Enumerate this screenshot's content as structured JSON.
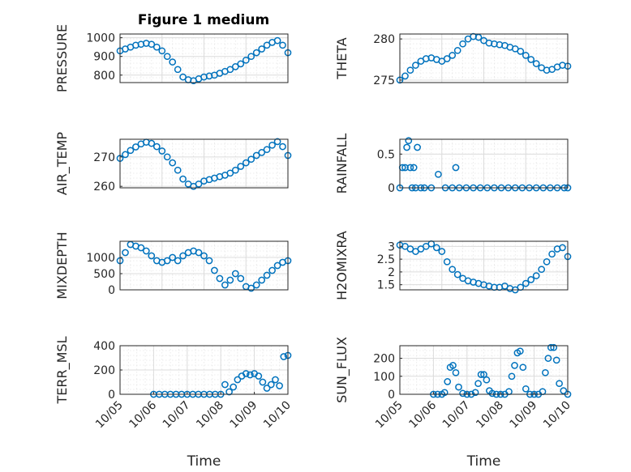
{
  "figure_title": "Figure 1 medium",
  "chart_data": [
    {
      "type": "scatter",
      "ylabel": "PRESSURE",
      "xlim": [
        "10/06",
        "10/10"
      ],
      "ylim": [
        760,
        1020
      ],
      "yticks": [
        800,
        900,
        1000
      ],
      "series": [
        {
          "x": [
            "10/06 00:00",
            "10/06 03:00",
            "10/06 06:00",
            "10/06 09:00",
            "10/06 12:00",
            "10/06 15:00",
            "10/06 18:00",
            "10/06 21:00",
            "10/07 00:00",
            "10/07 03:00",
            "10/07 06:00",
            "10/07 09:00",
            "10/07 12:00",
            "10/07 15:00",
            "10/07 18:00",
            "10/07 21:00",
            "10/08 00:00",
            "10/08 03:00",
            "10/08 06:00",
            "10/08 09:00",
            "10/08 12:00",
            "10/08 15:00",
            "10/08 18:00",
            "10/08 21:00",
            "10/09 00:00",
            "10/09 03:00",
            "10/09 06:00",
            "10/09 09:00",
            "10/09 12:00",
            "10/09 15:00",
            "10/09 18:00",
            "10/09 21:00",
            "10/10 00:00"
          ],
          "y": [
            930,
            940,
            950,
            960,
            965,
            970,
            965,
            950,
            930,
            900,
            870,
            830,
            790,
            775,
            770,
            780,
            790,
            795,
            800,
            810,
            820,
            830,
            845,
            860,
            880,
            900,
            920,
            940,
            960,
            975,
            985,
            960,
            920
          ]
        }
      ]
    },
    {
      "type": "scatter",
      "ylabel": "THETA",
      "xlim": [
        "10/06",
        "10/10"
      ],
      "ylim": [
        274.7,
        280.6
      ],
      "yticks": [
        275,
        280
      ],
      "series": [
        {
          "x": [
            "10/06 00:00",
            "10/06 03:00",
            "10/06 06:00",
            "10/06 09:00",
            "10/06 12:00",
            "10/06 15:00",
            "10/06 18:00",
            "10/06 21:00",
            "10/07 00:00",
            "10/07 03:00",
            "10/07 06:00",
            "10/07 09:00",
            "10/07 12:00",
            "10/07 15:00",
            "10/07 18:00",
            "10/07 21:00",
            "10/08 00:00",
            "10/08 03:00",
            "10/08 06:00",
            "10/08 09:00",
            "10/08 12:00",
            "10/08 15:00",
            "10/08 18:00",
            "10/08 21:00",
            "10/09 00:00",
            "10/09 03:00",
            "10/09 06:00",
            "10/09 09:00",
            "10/09 12:00",
            "10/09 15:00",
            "10/09 18:00",
            "10/09 21:00",
            "10/10 00:00"
          ],
          "y": [
            275.0,
            275.5,
            276.2,
            276.8,
            277.3,
            277.6,
            277.7,
            277.5,
            277.3,
            277.6,
            278.0,
            278.6,
            279.4,
            280.0,
            280.3,
            280.2,
            279.8,
            279.5,
            279.4,
            279.3,
            279.2,
            279.0,
            278.8,
            278.5,
            278.0,
            277.5,
            277.0,
            276.5,
            276.2,
            276.3,
            276.6,
            276.8,
            276.7
          ]
        }
      ]
    },
    {
      "type": "scatter",
      "ylabel": "AIR_TEMP",
      "xlim": [
        "10/06",
        "10/10"
      ],
      "ylim": [
        259.5,
        276
      ],
      "yticks": [
        260,
        270
      ],
      "series": [
        {
          "x": [
            "10/06 00:00",
            "10/06 03:00",
            "10/06 06:00",
            "10/06 09:00",
            "10/06 12:00",
            "10/06 15:00",
            "10/06 18:00",
            "10/06 21:00",
            "10/07 00:00",
            "10/07 03:00",
            "10/07 06:00",
            "10/07 09:00",
            "10/07 12:00",
            "10/07 15:00",
            "10/07 18:00",
            "10/07 21:00",
            "10/08 00:00",
            "10/08 03:00",
            "10/08 06:00",
            "10/08 09:00",
            "10/08 12:00",
            "10/08 15:00",
            "10/08 18:00",
            "10/08 21:00",
            "10/09 00:00",
            "10/09 03:00",
            "10/09 06:00",
            "10/09 09:00",
            "10/09 12:00",
            "10/09 15:00",
            "10/09 18:00",
            "10/09 21:00",
            "10/10 00:00"
          ],
          "y": [
            269.5,
            270.8,
            272.2,
            273.4,
            274.4,
            275.0,
            274.6,
            273.5,
            272.0,
            270.0,
            268.0,
            265.5,
            262.5,
            260.8,
            260.0,
            260.8,
            261.8,
            262.3,
            262.8,
            263.3,
            263.8,
            264.5,
            265.5,
            266.8,
            268.0,
            269.2,
            270.5,
            271.5,
            272.5,
            274.0,
            275.2,
            273.5,
            270.5
          ]
        }
      ]
    },
    {
      "type": "scatter",
      "ylabel": "RAINFALL",
      "xlim": [
        "10/06",
        "10/10"
      ],
      "ylim": [
        0,
        0.72
      ],
      "yticks": [
        0,
        0.5
      ],
      "series": [
        {
          "x": [
            "10/06 00:00",
            "10/06 01:30",
            "10/06 03:00",
            "10/06 04:00",
            "10/06 05:00",
            "10/06 06:00",
            "10/06 07:00",
            "10/06 08:00",
            "10/06 09:00",
            "10/06 10:00",
            "10/06 12:00",
            "10/06 14:00",
            "10/06 18:00",
            "10/06 22:00",
            "10/07 02:00",
            "10/07 06:00",
            "10/07 08:00",
            "10/07 10:00",
            "10/07 14:00",
            "10/07 18:00",
            "10/07 22:00",
            "10/08 02:00",
            "10/08 06:00",
            "10/08 10:00",
            "10/08 14:00",
            "10/08 18:00",
            "10/08 22:00",
            "10/09 02:00",
            "10/09 06:00",
            "10/09 10:00",
            "10/09 14:00",
            "10/09 18:00",
            "10/09 22:00",
            "10/10 00:00"
          ],
          "y": [
            0,
            0.3,
            0.3,
            0.6,
            0.7,
            0.3,
            0,
            0.3,
            0,
            0.6,
            0,
            0,
            0,
            0.2,
            0,
            0,
            0.3,
            0,
            0,
            0,
            0,
            0,
            0,
            0,
            0,
            0,
            0,
            0,
            0,
            0,
            0,
            0,
            0,
            0
          ]
        }
      ]
    },
    {
      "type": "scatter",
      "ylabel": "MIXDEPTH",
      "xlim": [
        "10/06",
        "10/10"
      ],
      "ylim": [
        0,
        1500
      ],
      "yticks": [
        0,
        500,
        1000
      ],
      "series": [
        {
          "x": [
            "10/06 00:00",
            "10/06 03:00",
            "10/06 06:00",
            "10/06 09:00",
            "10/06 12:00",
            "10/06 15:00",
            "10/06 18:00",
            "10/06 21:00",
            "10/07 00:00",
            "10/07 03:00",
            "10/07 06:00",
            "10/07 09:00",
            "10/07 12:00",
            "10/07 15:00",
            "10/07 18:00",
            "10/07 21:00",
            "10/08 00:00",
            "10/08 03:00",
            "10/08 06:00",
            "10/08 09:00",
            "10/08 12:00",
            "10/08 15:00",
            "10/08 18:00",
            "10/08 21:00",
            "10/09 00:00",
            "10/09 03:00",
            "10/09 06:00",
            "10/09 09:00",
            "10/09 12:00",
            "10/09 15:00",
            "10/09 18:00",
            "10/09 21:00",
            "10/10 00:00"
          ],
          "y": [
            900,
            1150,
            1400,
            1350,
            1300,
            1200,
            1050,
            900,
            850,
            900,
            1000,
            900,
            1050,
            1150,
            1200,
            1150,
            1050,
            900,
            600,
            350,
            150,
            300,
            500,
            350,
            100,
            50,
            150,
            300,
            450,
            600,
            750,
            850,
            900
          ]
        }
      ]
    },
    {
      "type": "scatter",
      "ylabel": "H2OMIXRA",
      "xlim": [
        "10/06",
        "10/10"
      ],
      "ylim": [
        1.3,
        3.2
      ],
      "yticks": [
        1.5,
        2,
        2.5,
        3
      ],
      "series": [
        {
          "x": [
            "10/06 00:00",
            "10/06 03:00",
            "10/06 06:00",
            "10/06 09:00",
            "10/06 12:00",
            "10/06 15:00",
            "10/06 18:00",
            "10/06 21:00",
            "10/07 00:00",
            "10/07 03:00",
            "10/07 06:00",
            "10/07 09:00",
            "10/07 12:00",
            "10/07 15:00",
            "10/07 18:00",
            "10/07 21:00",
            "10/08 00:00",
            "10/08 03:00",
            "10/08 06:00",
            "10/08 09:00",
            "10/08 12:00",
            "10/08 15:00",
            "10/08 18:00",
            "10/08 21:00",
            "10/09 00:00",
            "10/09 03:00",
            "10/09 06:00",
            "10/09 09:00",
            "10/09 12:00",
            "10/09 15:00",
            "10/09 18:00",
            "10/09 21:00",
            "10/10 00:00"
          ],
          "y": [
            3.05,
            3.0,
            2.9,
            2.8,
            2.9,
            3.0,
            3.1,
            2.95,
            2.8,
            2.4,
            2.1,
            1.9,
            1.75,
            1.65,
            1.6,
            1.55,
            1.5,
            1.45,
            1.4,
            1.4,
            1.45,
            1.35,
            1.3,
            1.4,
            1.55,
            1.7,
            1.85,
            2.1,
            2.4,
            2.7,
            2.9,
            2.95,
            2.6
          ]
        }
      ]
    },
    {
      "type": "scatter",
      "ylabel": "TERR_MSL",
      "xlim": [
        "10/05",
        "10/10"
      ],
      "ylim": [
        0,
        400
      ],
      "yticks": [
        0,
        200,
        400
      ],
      "xticks": [
        "10/05",
        "10/06",
        "10/07",
        "10/08",
        "10/09",
        "10/10"
      ],
      "xlabel": "Time",
      "series": [
        {
          "x": [
            "10/06 00:00",
            "10/06 04:00",
            "10/06 08:00",
            "10/06 12:00",
            "10/06 16:00",
            "10/06 20:00",
            "10/07 00:00",
            "10/07 04:00",
            "10/07 08:00",
            "10/07 12:00",
            "10/07 16:00",
            "10/07 20:00",
            "10/08 00:00",
            "10/08 03:00",
            "10/08 06:00",
            "10/08 09:00",
            "10/08 12:00",
            "10/08 15:00",
            "10/08 18:00",
            "10/08 21:00",
            "10/09 00:00",
            "10/09 03:00",
            "10/09 06:00",
            "10/09 09:00",
            "10/09 12:00",
            "10/09 15:00",
            "10/09 18:00",
            "10/09 21:00",
            "10/10 00:00"
          ],
          "y": [
            0,
            0,
            0,
            0,
            0,
            0,
            0,
            0,
            0,
            0,
            0,
            0,
            0,
            80,
            20,
            60,
            120,
            150,
            170,
            160,
            170,
            150,
            100,
            50,
            80,
            120,
            70,
            310,
            320
          ]
        }
      ]
    },
    {
      "type": "scatter",
      "ylabel": "SUN_FLUX",
      "xlim": [
        "10/05",
        "10/10"
      ],
      "ylim": [
        0,
        270
      ],
      "yticks": [
        0,
        100,
        200
      ],
      "xticks": [
        "10/05",
        "10/06",
        "10/07",
        "10/08",
        "10/09",
        "10/10"
      ],
      "xlabel": "Time",
      "series": [
        {
          "x": [
            "10/06 00:00",
            "10/06 03:00",
            "10/06 06:00",
            "10/06 08:00",
            "10/06 10:00",
            "10/06 12:00",
            "10/06 14:00",
            "10/06 16:00",
            "10/06 18:00",
            "10/06 21:00",
            "10/07 00:00",
            "10/07 03:00",
            "10/07 06:00",
            "10/07 08:00",
            "10/07 10:00",
            "10/07 12:00",
            "10/07 14:00",
            "10/07 16:00",
            "10/07 18:00",
            "10/07 21:00",
            "10/08 00:00",
            "10/08 03:00",
            "10/08 06:00",
            "10/08 08:00",
            "10/08 10:00",
            "10/08 12:00",
            "10/08 14:00",
            "10/08 16:00",
            "10/08 18:00",
            "10/08 21:00",
            "10/09 00:00",
            "10/09 03:00",
            "10/09 06:00",
            "10/09 08:00",
            "10/09 10:00",
            "10/09 12:00",
            "10/09 14:00",
            "10/09 16:00",
            "10/09 18:00",
            "10/09 21:00",
            "10/10 00:00"
          ],
          "y": [
            0,
            0,
            0,
            10,
            70,
            150,
            160,
            120,
            40,
            5,
            0,
            0,
            10,
            60,
            110,
            110,
            80,
            20,
            5,
            0,
            0,
            0,
            15,
            100,
            160,
            230,
            240,
            150,
            30,
            0,
            0,
            0,
            15,
            120,
            200,
            260,
            260,
            190,
            60,
            20,
            0
          ]
        }
      ]
    }
  ]
}
